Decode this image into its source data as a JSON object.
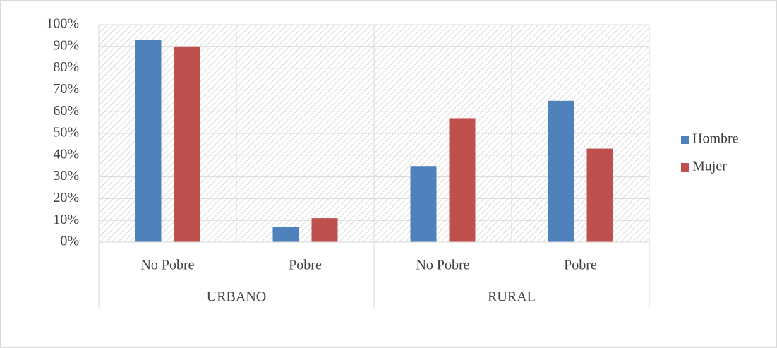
{
  "chart_data": {
    "type": "grouped-bar",
    "groups": [
      {
        "label": "URBANO",
        "categories": [
          "No Pobre",
          "Pobre"
        ]
      },
      {
        "label": "RURAL",
        "categories": [
          "No Pobre",
          "Pobre"
        ]
      }
    ],
    "series": [
      {
        "name": "Hombre",
        "color": "#4f81bd",
        "values": [
          93,
          7,
          35,
          65
        ]
      },
      {
        "name": "Mujer",
        "color": "#c0504d",
        "values": [
          90,
          11,
          57,
          43
        ]
      }
    ],
    "ylim": [
      0,
      100
    ],
    "yticks": [
      {
        "value": 0,
        "label": "0%"
      },
      {
        "value": 10,
        "label": "10%"
      },
      {
        "value": 20,
        "label": "20%"
      },
      {
        "value": 30,
        "label": "30%"
      },
      {
        "value": 40,
        "label": "40%"
      },
      {
        "value": 50,
        "label": "50%"
      },
      {
        "value": 60,
        "label": "60%"
      },
      {
        "value": 70,
        "label": "70%"
      },
      {
        "value": 80,
        "label": "80%"
      },
      {
        "value": 90,
        "label": "90%"
      },
      {
        "value": 100,
        "label": "100%"
      }
    ],
    "grid": true,
    "legend": "right"
  }
}
